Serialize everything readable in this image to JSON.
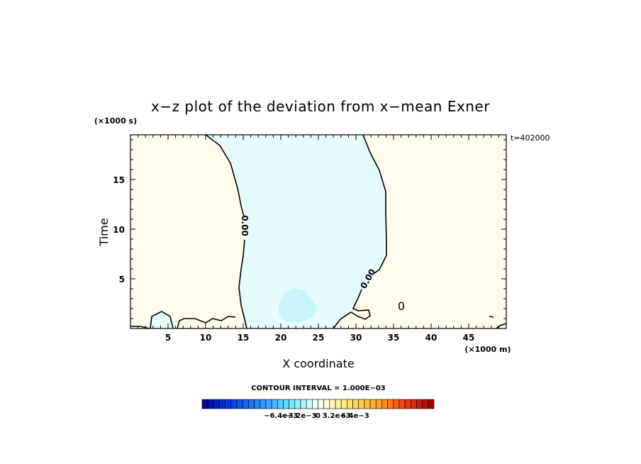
{
  "chart_data": {
    "type": "contour",
    "title": "x−z plot of the deviation from x−mean Exner",
    "xlabel": "X coordinate",
    "ylabel": "Time",
    "x_unit": "(×1000 m)",
    "y_unit": "(×1000 s)",
    "time_label": "t=402000",
    "xlim": [
      0,
      50
    ],
    "ylim": [
      0,
      19.5
    ],
    "x_ticks": [
      5,
      10,
      15,
      20,
      25,
      30,
      35,
      40,
      45
    ],
    "y_ticks": [
      5,
      10,
      15
    ],
    "contour_interval_text": "CONTOUR INTERVAL = 1.000E−03",
    "contour_labels": [
      "0.00",
      "0.00",
      "0"
    ],
    "colorbar_tick_labels": [
      "−6.4e−3",
      "−3.2e−3",
      "0",
      "3.2e−3",
      "6.4e−3"
    ],
    "colorbar_values": [
      -0.0064,
      -0.0032,
      0,
      0.0032,
      0.0064
    ],
    "regions": [
      {
        "sign": "positive",
        "color": "#fffcee",
        "x_range": [
          0,
          15
        ]
      },
      {
        "sign": "negative",
        "color": "#e6fcfc",
        "x_range": [
          15,
          33
        ]
      },
      {
        "sign": "positive",
        "color": "#fffcee",
        "x_range": [
          33,
          50
        ]
      }
    ],
    "zero_contour_left": [
      [
        10,
        19.5
      ],
      [
        12,
        18
      ],
      [
        14,
        15
      ],
      [
        15,
        12
      ],
      [
        15.2,
        10
      ],
      [
        14.8,
        6
      ],
      [
        15,
        2
      ],
      [
        16,
        0
      ]
    ],
    "zero_contour_right": [
      [
        31,
        19.5
      ],
      [
        33,
        16
      ],
      [
        34,
        13
      ],
      [
        34,
        7
      ],
      [
        32,
        5
      ],
      [
        30,
        3
      ],
      [
        29,
        1
      ],
      [
        27,
        0
      ]
    ],
    "weak_negative_patch": {
      "color": "#c8f6f8",
      "x_range": [
        19.5,
        25
      ],
      "y_range": [
        1,
        4.2
      ]
    }
  }
}
